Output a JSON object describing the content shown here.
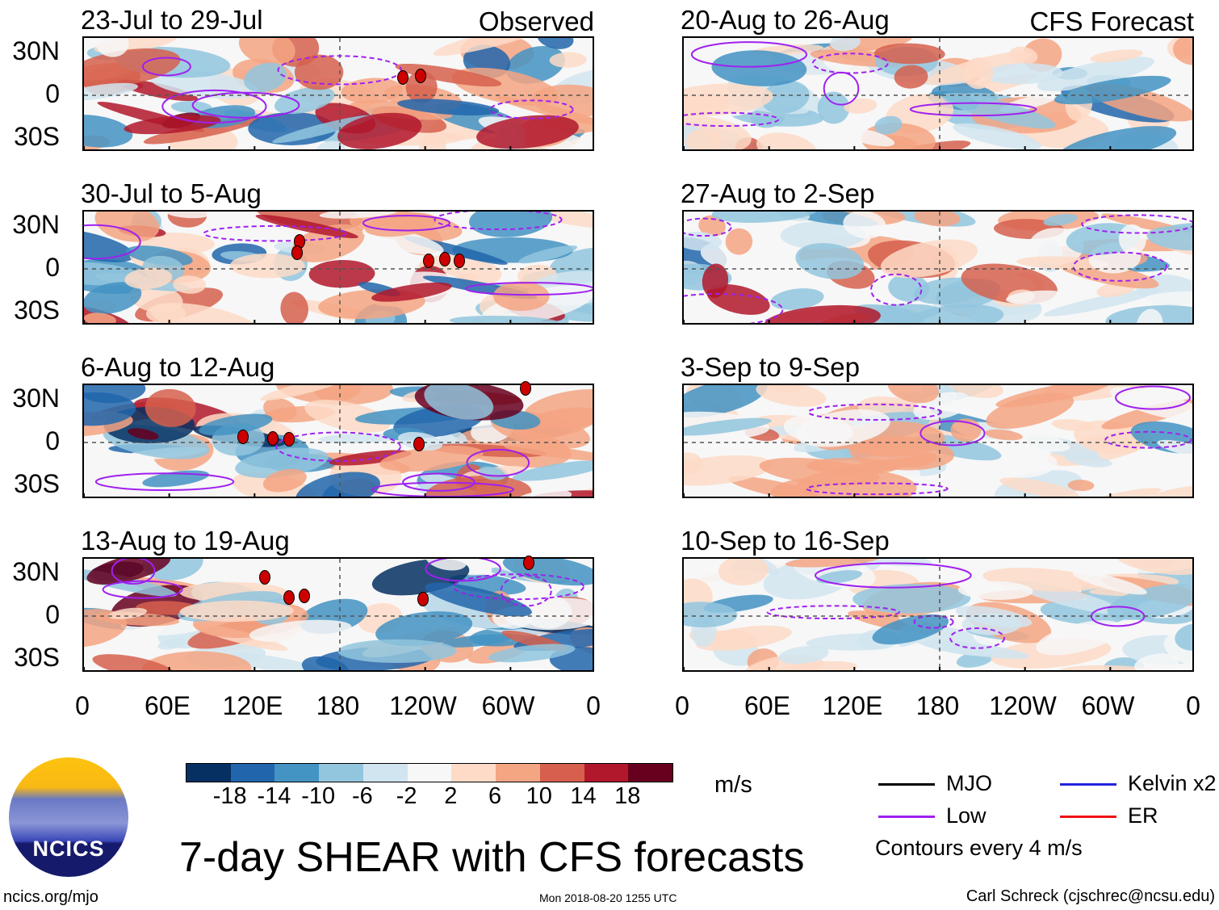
{
  "figure": {
    "title": "7-day SHEAR with CFS forecasts",
    "left_column_label": "Observed",
    "right_column_label": "CFS Forecast",
    "observed_panels": [
      "23-Jul to 29-Jul",
      "30-Jul to 5-Aug",
      "6-Aug to 12-Aug",
      "13-Aug to 19-Aug"
    ],
    "forecast_panels": [
      "20-Aug to 26-Aug",
      "27-Aug to 2-Sep",
      "3-Sep to 9-Sep",
      "10-Sep to 16-Sep"
    ],
    "lat_labels": [
      "30N",
      "0",
      "30S"
    ],
    "lon_labels": [
      "0",
      "60E",
      "120E",
      "180",
      "120W",
      "60W",
      "0"
    ]
  },
  "colorbar": {
    "unit": "m/s",
    "ticks": [
      "-18",
      "-14",
      "-10",
      "-6",
      "-2",
      "2",
      "6",
      "10",
      "14",
      "18"
    ],
    "colors": [
      "#053061",
      "#2166ac",
      "#4393c3",
      "#92c5de",
      "#d1e5f0",
      "#f7f7f7",
      "#fddbc7",
      "#f4a582",
      "#d6604d",
      "#b2182b",
      "#67001f"
    ]
  },
  "legend": {
    "items": [
      {
        "label": "MJO",
        "color": "#000000"
      },
      {
        "label": "Kelvin x2",
        "color": "#2222dd"
      },
      {
        "label": "Low",
        "color": "#a020f0"
      },
      {
        "label": "ER",
        "color": "#ee1111"
      }
    ],
    "note": "Contours every 4 m/s"
  },
  "logo": {
    "text": "NCICS"
  },
  "footer": {
    "url": "ncics.org/mjo",
    "timestamp": "Mon 2018-08-20 1255 UTC",
    "author": "Carl Schreck (cjschrec@ncsu.edu)"
  }
}
